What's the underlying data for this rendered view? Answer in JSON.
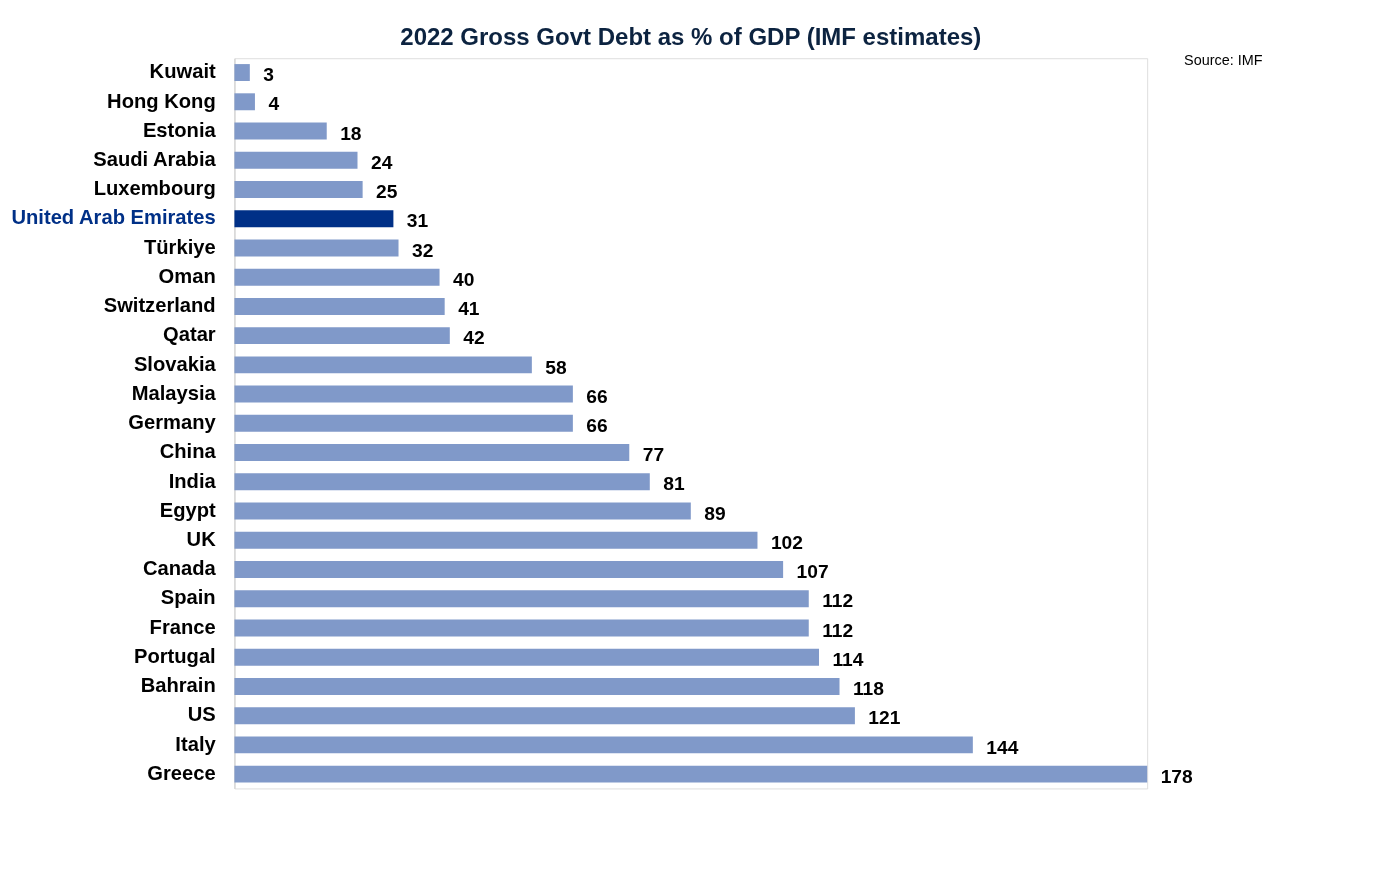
{
  "chart_data": {
    "type": "bar",
    "orientation": "horizontal",
    "title": "2022 Gross Govt Debt as % of GDP (IMF estimates)",
    "categories": [
      "Kuwait",
      "Hong Kong",
      "Estonia",
      "Saudi Arabia",
      "Luxembourg",
      "United Arab Emirates",
      "Türkiye",
      "Oman",
      "Switzerland",
      "Qatar",
      "Slovakia",
      "Malaysia",
      "Germany",
      "China",
      "India",
      "Egypt",
      "UK",
      "Canada",
      "Spain",
      "France",
      "Portugal",
      "Bahrain",
      "US",
      "Italy",
      "Greece"
    ],
    "values": [
      3,
      4,
      18,
      24,
      25,
      31,
      32,
      40,
      41,
      42,
      58,
      66,
      66,
      77,
      81,
      89,
      102,
      107,
      112,
      112,
      114,
      118,
      121,
      144,
      178
    ],
    "colors": [
      "#8099c9",
      "#8099c9",
      "#8099c9",
      "#8099c9",
      "#8099c9",
      "#003087",
      "#8099c9",
      "#8099c9",
      "#8099c9",
      "#8099c9",
      "#8099c9",
      "#8099c9",
      "#8099c9",
      "#8099c9",
      "#8099c9",
      "#8099c9",
      "#8099c9",
      "#8099c9",
      "#8099c9",
      "#8099c9",
      "#8099c9",
      "#8099c9",
      "#8099c9",
      "#8099c9",
      "#8099c9"
    ],
    "data_labels": true,
    "annotations": [
      "Source: IMF"
    ]
  }
}
